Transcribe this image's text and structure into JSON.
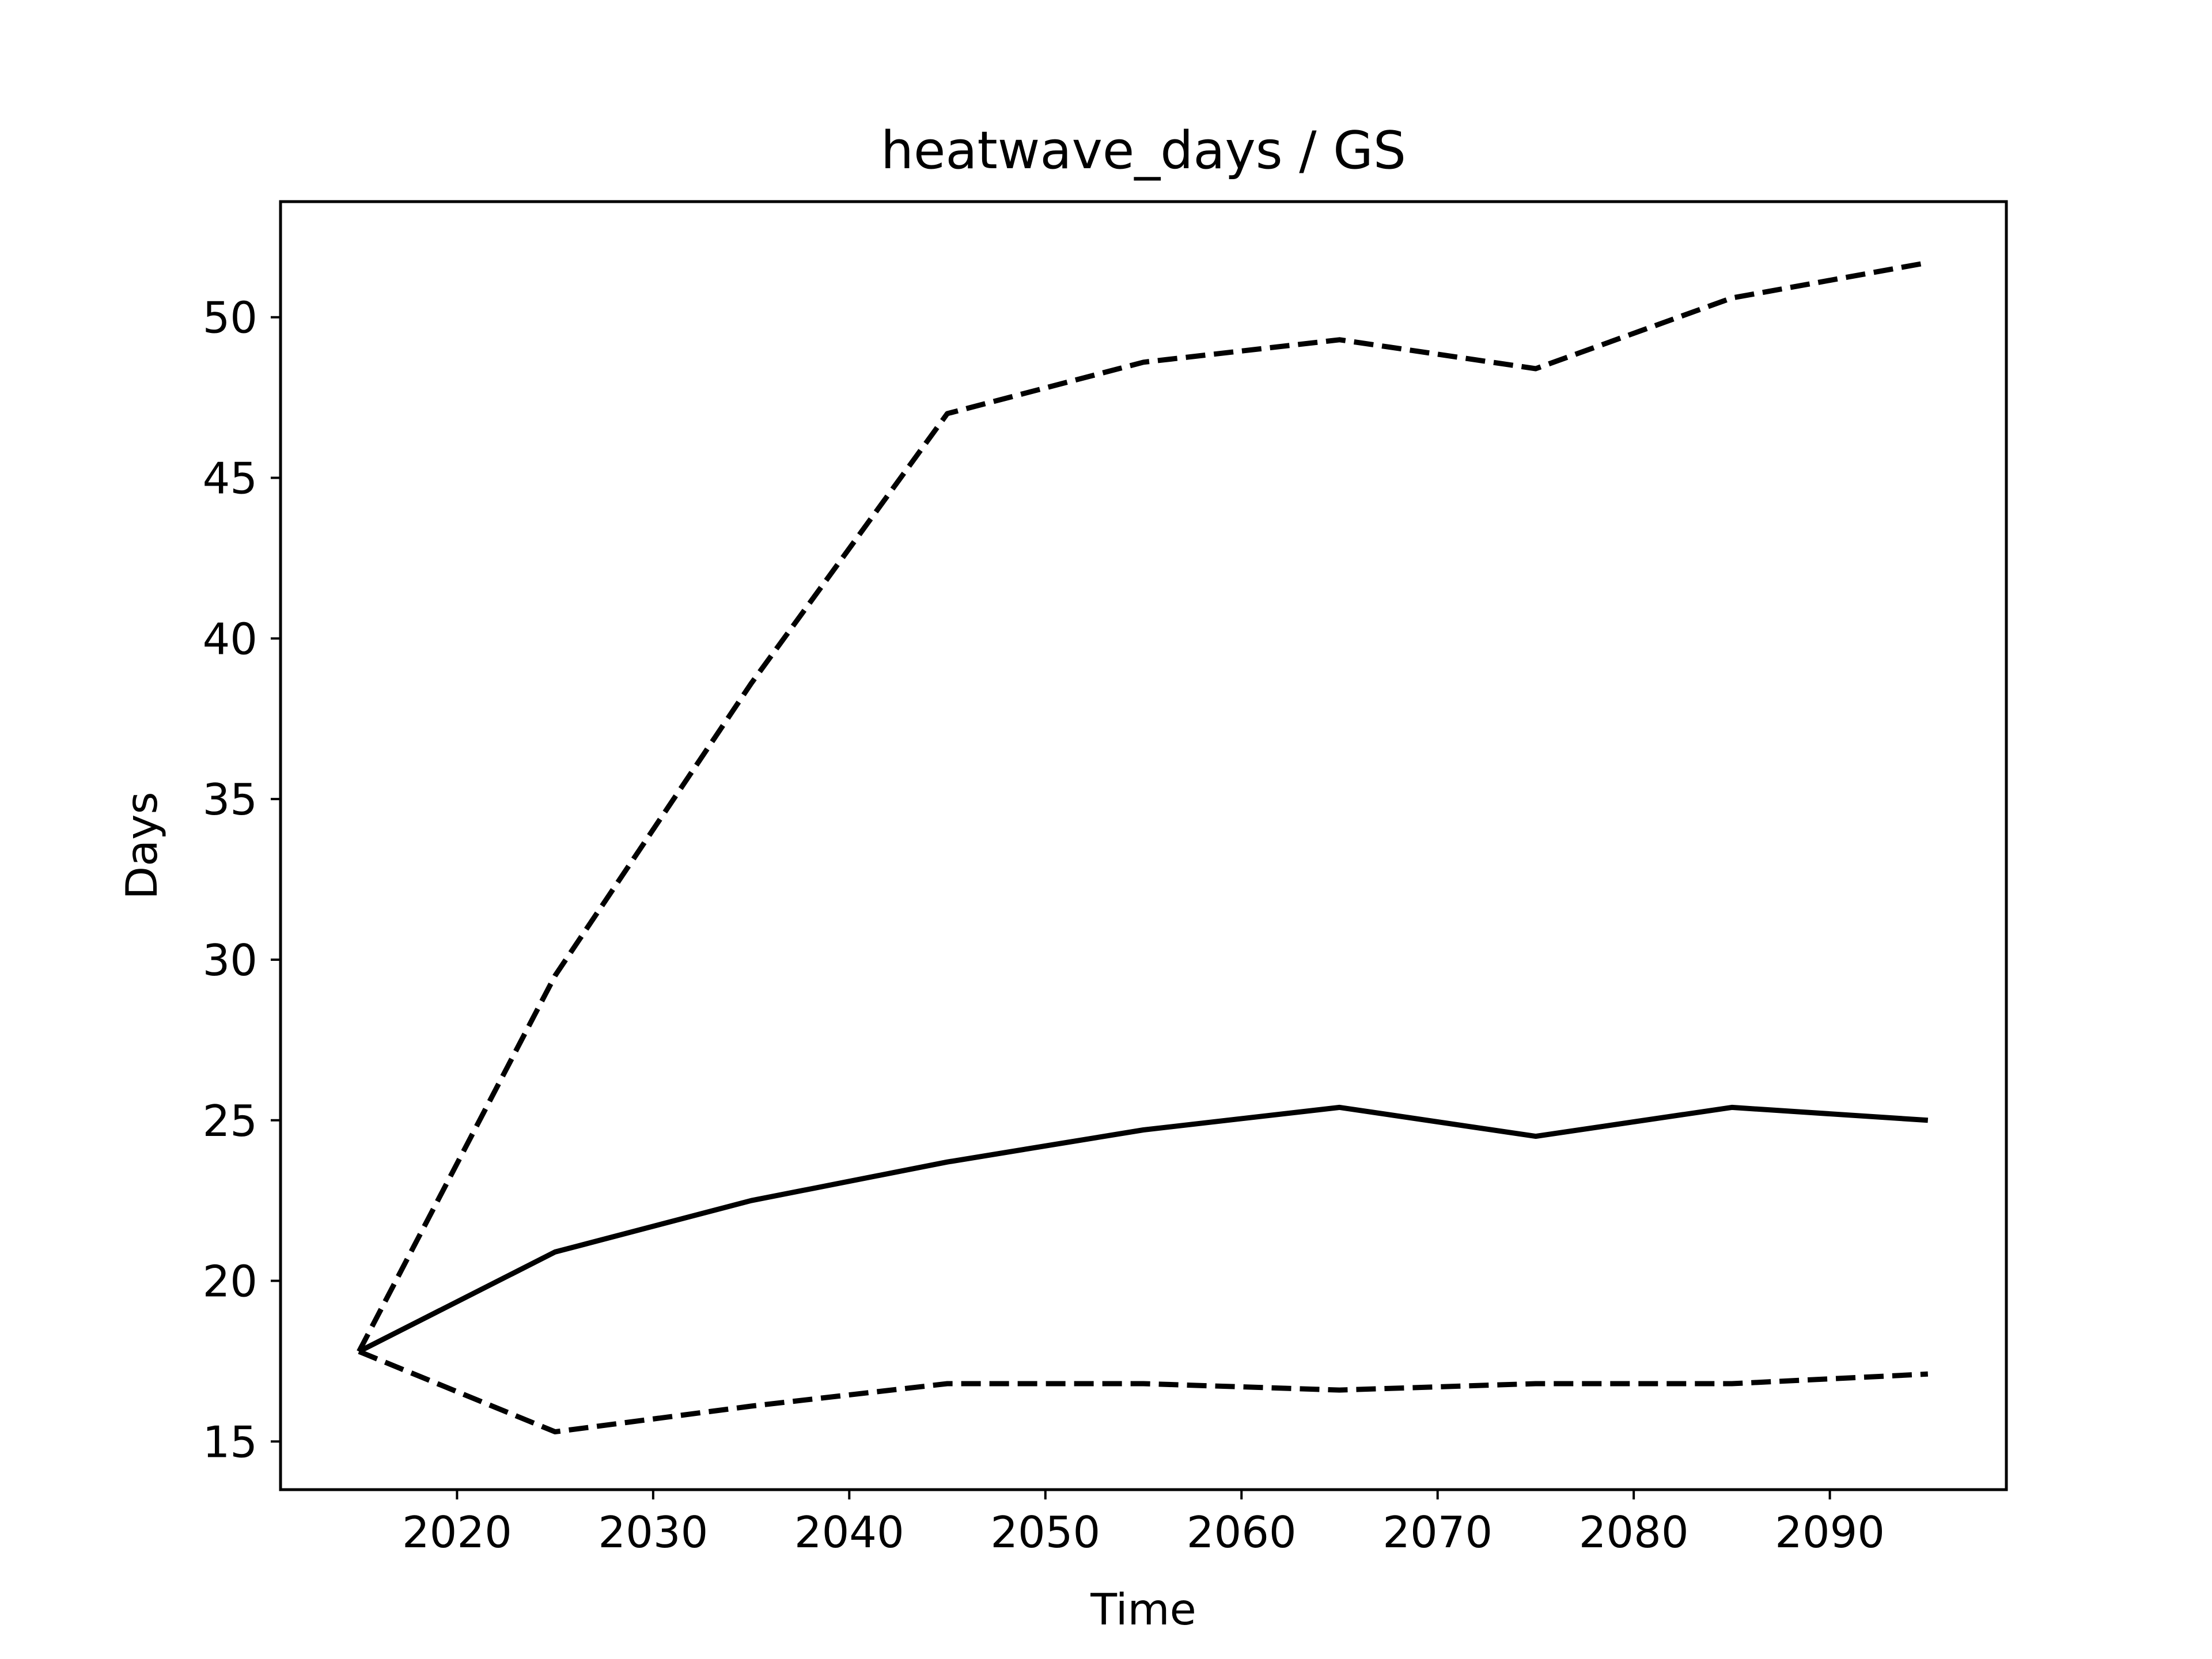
{
  "chart_data": {
    "type": "line",
    "title": "heatwave_days / GS",
    "xlabel": "Time",
    "ylabel": "Days",
    "xlim": [
      2011,
      2099
    ],
    "ylim": [
      13.5,
      53.6
    ],
    "xticks": [
      2020,
      2030,
      2040,
      2050,
      2060,
      2070,
      2080,
      2090
    ],
    "yticks": [
      15,
      20,
      25,
      30,
      35,
      40,
      45,
      50
    ],
    "x": [
      2015,
      2025,
      2035,
      2045,
      2055,
      2065,
      2075,
      2085,
      2095
    ],
    "series": [
      {
        "style": "solid",
        "color": "#000000",
        "values": [
          17.8,
          20.9,
          22.5,
          23.7,
          24.7,
          25.4,
          24.5,
          25.4,
          25.0
        ]
      },
      {
        "style": "dashed",
        "color": "#000000",
        "values": [
          17.8,
          29.5,
          38.6,
          47.0,
          48.6,
          49.3,
          48.4,
          50.6,
          51.7
        ]
      },
      {
        "style": "dashed",
        "color": "#000000",
        "values": [
          17.8,
          15.3,
          16.1,
          16.8,
          16.8,
          16.6,
          16.8,
          16.8,
          17.1
        ]
      }
    ],
    "grid": false,
    "legend": "none"
  }
}
